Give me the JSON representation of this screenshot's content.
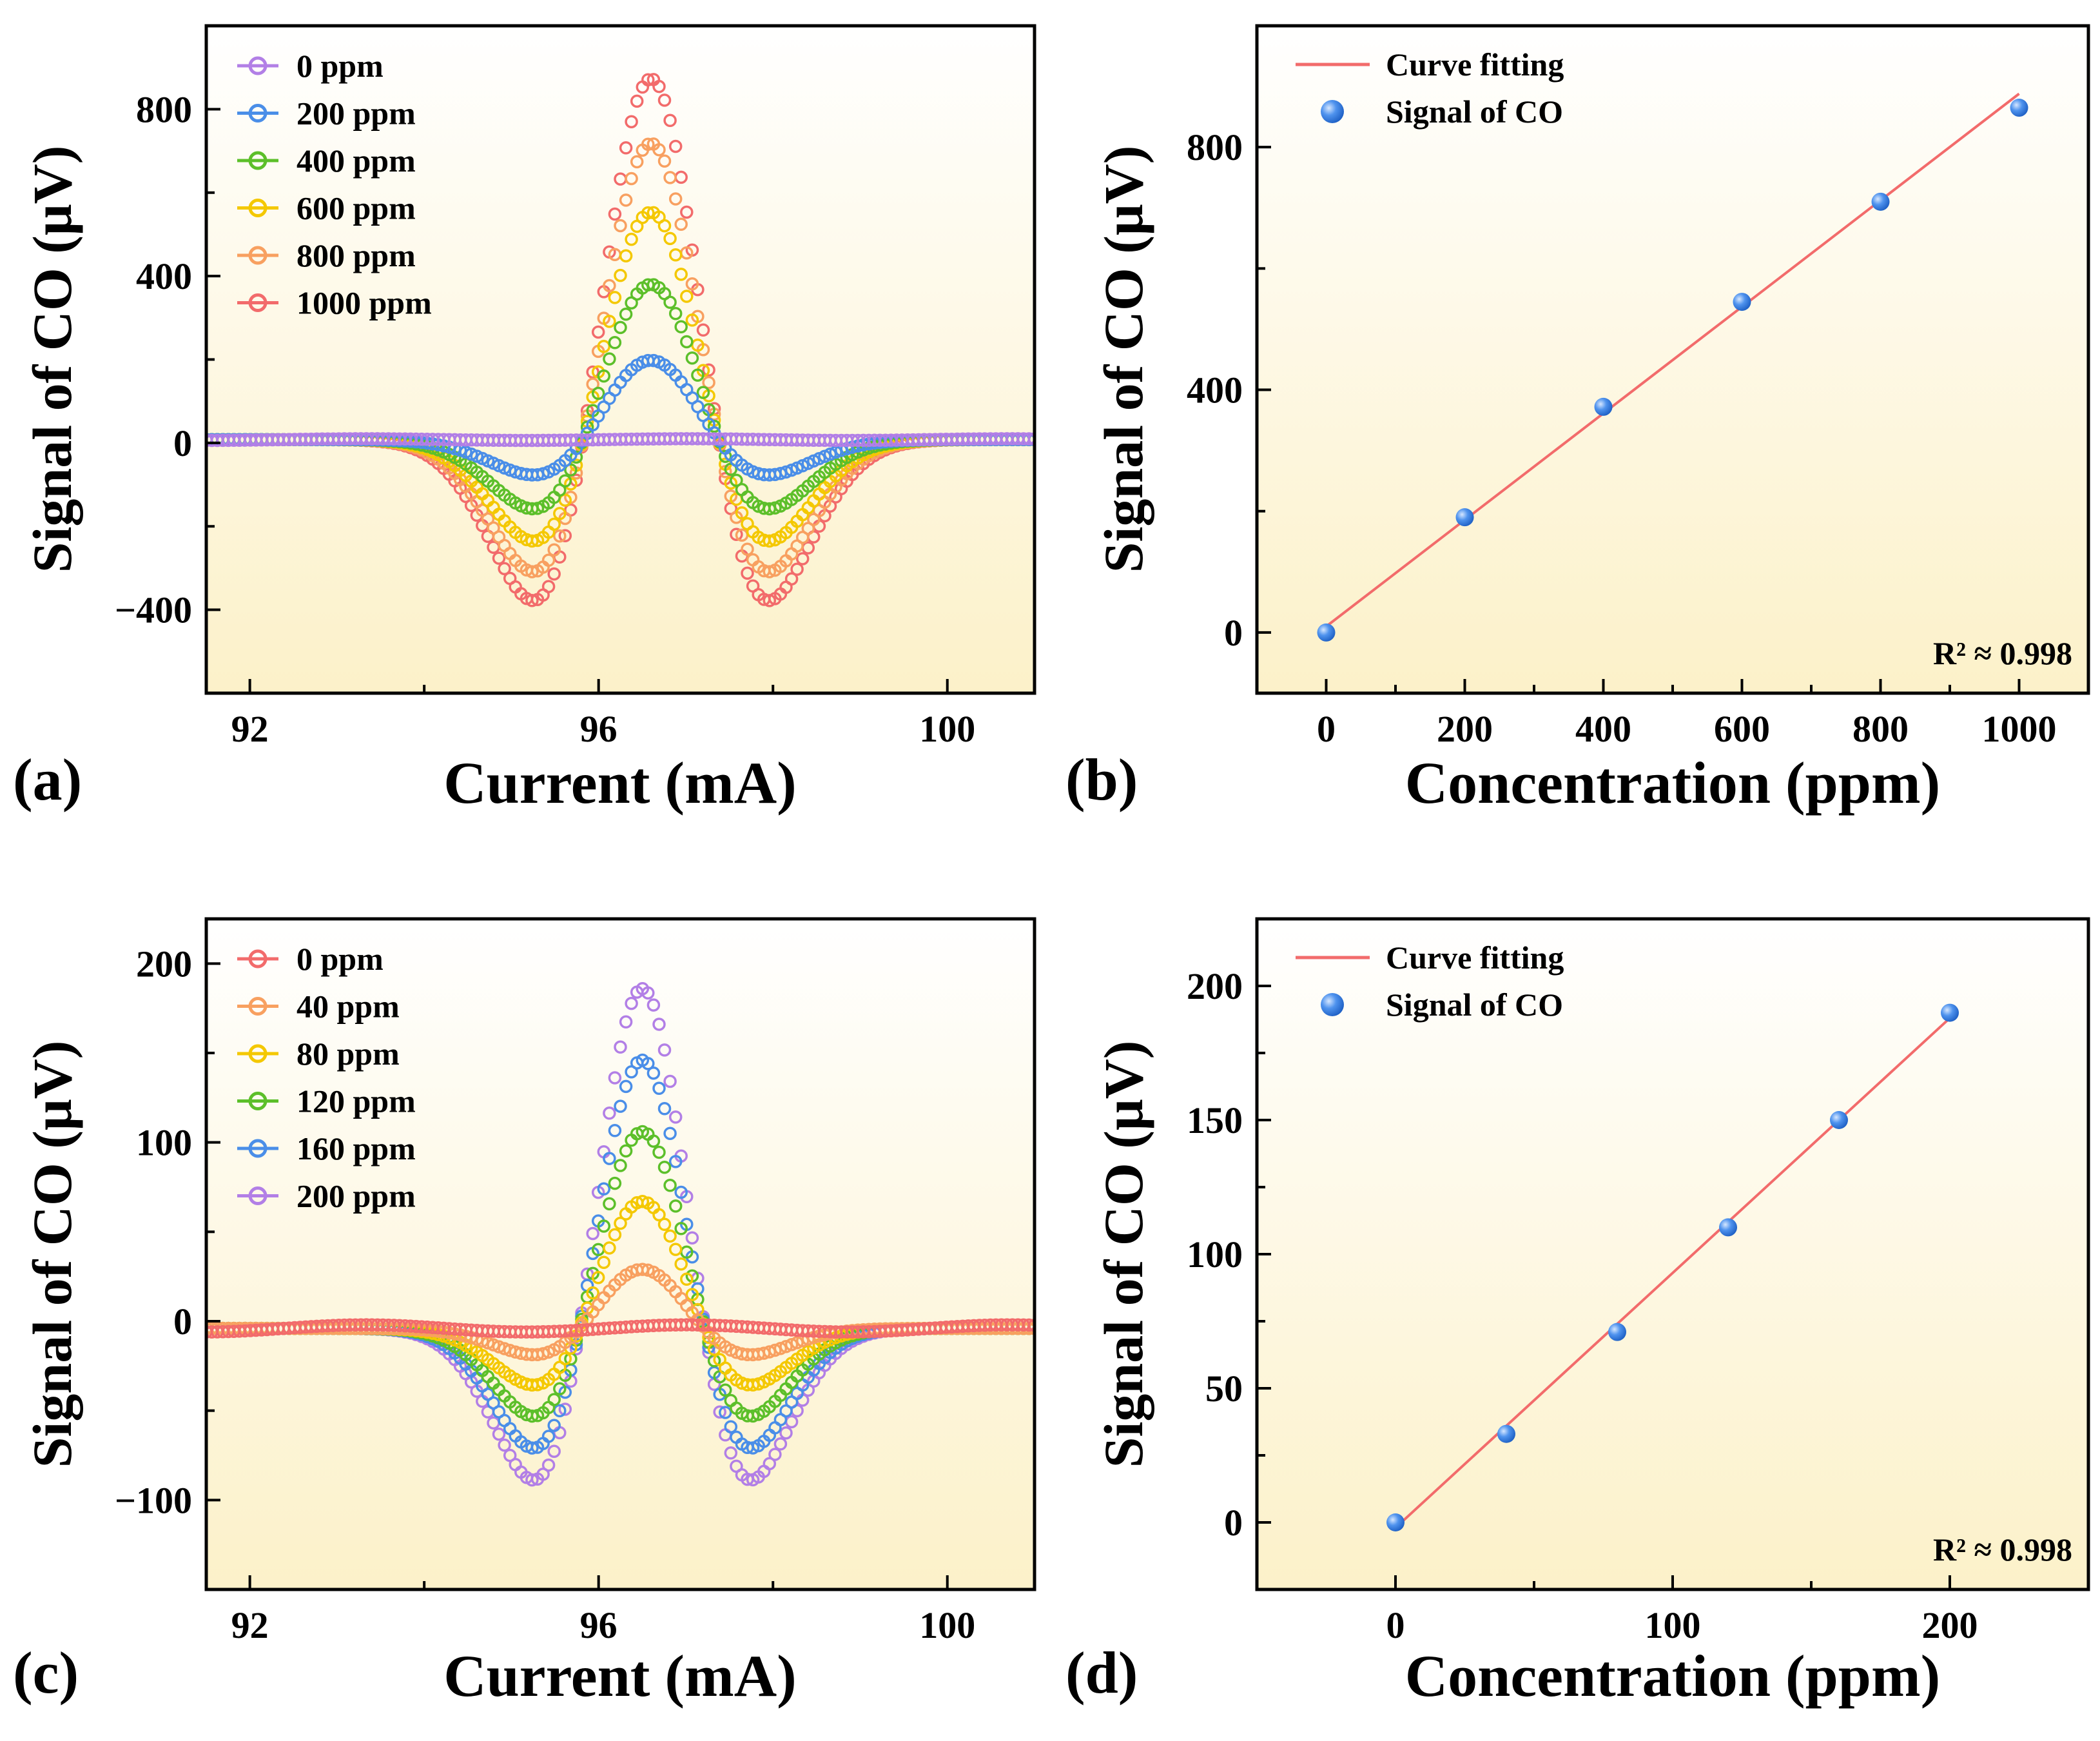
{
  "chart_data": [
    {
      "panel": "(a)",
      "type": "line",
      "xlabel": "Current (mA)",
      "ylabel": "Signal of CO (μV)",
      "xlim": [
        91.5,
        101
      ],
      "ylim": [
        -600,
        1000
      ],
      "xticks": [
        "92",
        "96",
        "100"
      ],
      "yticks": [
        "−400",
        "0",
        "400",
        "800"
      ],
      "ytick_values": [
        -400,
        0,
        400,
        800
      ],
      "xtick_values": [
        92,
        96,
        100
      ],
      "shape": {
        "center": 96.6,
        "sigma": 0.78,
        "baseline": 8
      },
      "legend": "top-left",
      "series": [
        {
          "name": "0 ppm",
          "amplitude": 0,
          "color": "#b27fe6",
          "z": 6
        },
        {
          "name": "200 ppm",
          "amplitude": 190,
          "color": "#4a8ee8",
          "z": 5
        },
        {
          "name": "400 ppm",
          "amplitude": 372,
          "color": "#5cbf2a",
          "z": 4
        },
        {
          "name": "600 ppm",
          "amplitude": 545,
          "color": "#f4c800",
          "z": 3
        },
        {
          "name": "800 ppm",
          "amplitude": 710,
          "color": "#f8a060",
          "z": 2
        },
        {
          "name": "1000 ppm",
          "amplitude": 865,
          "color": "#f26b6b",
          "z": 1
        }
      ]
    },
    {
      "panel": "(b)",
      "type": "scatter",
      "xlabel": "Concentration (ppm)",
      "ylabel": "Signal of CO (μV)",
      "xlim": [
        -100,
        1100
      ],
      "ylim": [
        -100,
        1000
      ],
      "xticks": [
        "0",
        "200",
        "400",
        "600",
        "800",
        "1000"
      ],
      "xtick_values": [
        0,
        200,
        400,
        600,
        800,
        1000
      ],
      "yticks": [
        "0",
        "400",
        "800"
      ],
      "ytick_values": [
        0,
        400,
        800
      ],
      "legend": "top-left",
      "fit_label": "Curve fitting",
      "scatter_label": "Signal of CO",
      "annotation": "R² ≈ 0.998",
      "x": [
        0,
        200,
        400,
        600,
        800,
        1000
      ],
      "y": [
        0,
        190,
        372,
        545,
        710,
        865
      ],
      "fit": {
        "x": [
          0,
          1000
        ],
        "y": [
          10,
          888
        ]
      },
      "point_color": "#4a8ee8",
      "line_color": "#f26b6b"
    },
    {
      "panel": "(c)",
      "type": "line",
      "xlabel": "Current (mA)",
      "ylabel": "Signal of CO (μV)",
      "xlim": [
        91.5,
        101
      ],
      "ylim": [
        -150,
        225
      ],
      "xticks": [
        "92",
        "96",
        "100"
      ],
      "xtick_values": [
        92,
        96,
        100
      ],
      "yticks": [
        "−100",
        "0",
        "100",
        "200"
      ],
      "ytick_values": [
        -100,
        0,
        100,
        200
      ],
      "shape": {
        "center": 96.5,
        "sigma": 0.72,
        "baseline": -4
      },
      "legend": "top-left",
      "series": [
        {
          "name": "0 ppm",
          "amplitude": 0,
          "color": "#f26b6b",
          "z": 6
        },
        {
          "name": "40 ppm",
          "amplitude": 33,
          "color": "#f8a060",
          "z": 5
        },
        {
          "name": "80 ppm",
          "amplitude": 71,
          "color": "#f4c800",
          "z": 4
        },
        {
          "name": "120 ppm",
          "amplitude": 110,
          "color": "#5cbf2a",
          "z": 3
        },
        {
          "name": "160 ppm",
          "amplitude": 150,
          "color": "#4a8ee8",
          "z": 2
        },
        {
          "name": "200 ppm",
          "amplitude": 190,
          "color": "#b27fe6",
          "z": 1
        }
      ]
    },
    {
      "panel": "(d)",
      "type": "scatter",
      "xlabel": "Concentration (ppm)",
      "ylabel": "Signal of CO (μV)",
      "xlim": [
        -50,
        250
      ],
      "ylim": [
        -25,
        225
      ],
      "xticks": [
        "0",
        "100",
        "200"
      ],
      "xtick_values": [
        0,
        100,
        200
      ],
      "yticks": [
        "0",
        "50",
        "100",
        "150",
        "200"
      ],
      "ytick_values": [
        0,
        50,
        100,
        150,
        200
      ],
      "legend": "top-left",
      "fit_label": "Curve fitting",
      "scatter_label": "Signal of CO",
      "annotation": "R² ≈ 0.998",
      "x": [
        0,
        40,
        80,
        120,
        160,
        200
      ],
      "y": [
        0,
        33,
        71,
        110,
        150,
        190
      ],
      "fit": {
        "x": [
          0,
          200
        ],
        "y": [
          -2,
          188
        ]
      },
      "point_color": "#4a8ee8",
      "line_color": "#f26b6b"
    }
  ]
}
